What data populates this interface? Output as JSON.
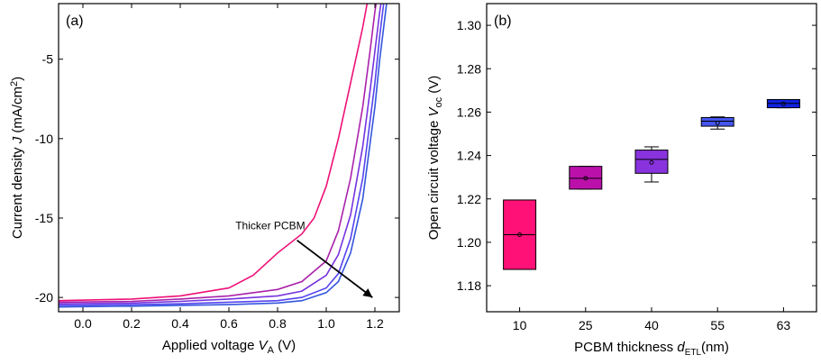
{
  "chart_data": [
    {
      "type": "line",
      "panel_label": "(a)",
      "xlabel_prefix": "Applied voltage ",
      "xlabel_var": "V",
      "xlabel_sub": "A",
      "xlabel_suffix": " (V)",
      "ylabel_prefix": "Current density ",
      "ylabel_var": "J",
      "ylabel_suffix": " (mA/cm",
      "ylabel_sup": "2",
      "ylabel_end": ")",
      "xlim": [
        -0.1,
        1.3
      ],
      "ylim": [
        -20.9,
        -1.5
      ],
      "xticks": [
        0.0,
        0.2,
        0.4,
        0.6,
        0.8,
        1.0,
        1.2
      ],
      "xtick_labels": [
        "0.0",
        "0.2",
        "0.4",
        "0.6",
        "0.8",
        "1.0",
        "1.2"
      ],
      "yticks": [
        -5,
        -10,
        -15,
        -20
      ],
      "ytick_labels": [
        "-5",
        "-10",
        "-15",
        "-20"
      ],
      "annotation": "Thicker PCBM",
      "series": [
        {
          "color": "#ee1177",
          "x": [
            -0.1,
            0.2,
            0.4,
            0.6,
            0.7,
            0.8,
            0.9,
            0.95,
            1.0,
            1.05,
            1.1,
            1.15,
            1.18,
            1.2,
            1.22
          ],
          "y": [
            -20.2,
            -20.1,
            -19.9,
            -19.4,
            -18.6,
            -17.2,
            -16.0,
            -15.0,
            -13.0,
            -10.0,
            -6.5,
            -3.0,
            -0.5,
            0.5,
            1.0
          ]
        },
        {
          "color": "#aa22aa",
          "x": [
            -0.1,
            0.2,
            0.4,
            0.6,
            0.8,
            0.9,
            1.0,
            1.05,
            1.1,
            1.15,
            1.18,
            1.2,
            1.22,
            1.24
          ],
          "y": [
            -20.3,
            -20.25,
            -20.1,
            -19.9,
            -19.5,
            -19.0,
            -17.7,
            -15.8,
            -12.5,
            -8.0,
            -4.5,
            -2.0,
            0.0,
            1.0
          ]
        },
        {
          "color": "#7733dd",
          "x": [
            -0.1,
            0.2,
            0.4,
            0.6,
            0.8,
            0.9,
            1.0,
            1.05,
            1.1,
            1.15,
            1.18,
            1.2,
            1.22,
            1.24,
            1.25
          ],
          "y": [
            -20.4,
            -20.35,
            -20.25,
            -20.1,
            -19.9,
            -19.6,
            -18.6,
            -17.3,
            -14.8,
            -10.5,
            -7.0,
            -4.5,
            -2.0,
            0.0,
            1.0
          ]
        },
        {
          "color": "#5544ee",
          "x": [
            -0.1,
            0.2,
            0.4,
            0.6,
            0.8,
            0.9,
            1.0,
            1.05,
            1.1,
            1.15,
            1.2,
            1.22,
            1.24,
            1.26
          ],
          "y": [
            -20.5,
            -20.45,
            -20.4,
            -20.3,
            -20.2,
            -20.0,
            -19.4,
            -18.5,
            -16.3,
            -12.5,
            -6.5,
            -3.5,
            -1.0,
            1.0
          ]
        },
        {
          "color": "#3355dd",
          "x": [
            -0.1,
            0.2,
            0.4,
            0.6,
            0.8,
            0.9,
            1.0,
            1.05,
            1.1,
            1.15,
            1.2,
            1.22,
            1.24,
            1.26,
            1.27
          ],
          "y": [
            -20.6,
            -20.55,
            -20.5,
            -20.45,
            -20.35,
            -20.2,
            -19.7,
            -19.0,
            -17.2,
            -13.8,
            -8.0,
            -5.0,
            -2.5,
            0.0,
            1.0
          ]
        }
      ],
      "arrow": {
        "from": [
          0.88,
          -16.4
        ],
        "to": [
          1.19,
          -20.0
        ]
      },
      "annotation_at": [
        0.77,
        -15.7
      ]
    },
    {
      "type": "box",
      "panel_label": "(b)",
      "xlabel_prefix": "PCBM thickness ",
      "xlabel_var": "d",
      "xlabel_sub": "ETL",
      "xlabel_suffix": "(nm)",
      "ylabel_prefix": "Open circuit voltage ",
      "ylabel_var": "V",
      "ylabel_sub": "oc",
      "ylabel_suffix": " (V)",
      "ylim": [
        1.168,
        1.31
      ],
      "yticks": [
        1.18,
        1.2,
        1.22,
        1.24,
        1.26,
        1.28,
        1.3
      ],
      "ytick_labels": [
        "1.18",
        "1.20",
        "1.22",
        "1.24",
        "1.26",
        "1.28",
        "1.30"
      ],
      "categories": [
        "10",
        "25",
        "40",
        "55",
        "63"
      ],
      "boxes": [
        {
          "color": "#ff1177",
          "q1": 1.1875,
          "median": 1.2035,
          "q3": 1.2195,
          "whisker_low": 1.1875,
          "whisker_high": 1.2195,
          "mean": 1.2035
        },
        {
          "color": "#bb11aa",
          "q1": 1.2245,
          "median": 1.2295,
          "q3": 1.235,
          "whisker_low": 1.2245,
          "whisker_high": 1.235,
          "mean": 1.2295
        },
        {
          "color": "#8833dd",
          "q1": 1.2318,
          "median": 1.2382,
          "q3": 1.2425,
          "whisker_low": 1.2278,
          "whisker_high": 1.244,
          "mean": 1.2368
        },
        {
          "color": "#4455ee",
          "q1": 1.2535,
          "median": 1.2558,
          "q3": 1.2575,
          "whisker_low": 1.2522,
          "whisker_high": 1.2578,
          "mean": 1.255
        },
        {
          "color": "#1122dd",
          "q1": 1.262,
          "median": 1.264,
          "q3": 1.2658,
          "whisker_low": 1.262,
          "whisker_high": 1.2658,
          "mean": 1.2638
        }
      ]
    }
  ]
}
